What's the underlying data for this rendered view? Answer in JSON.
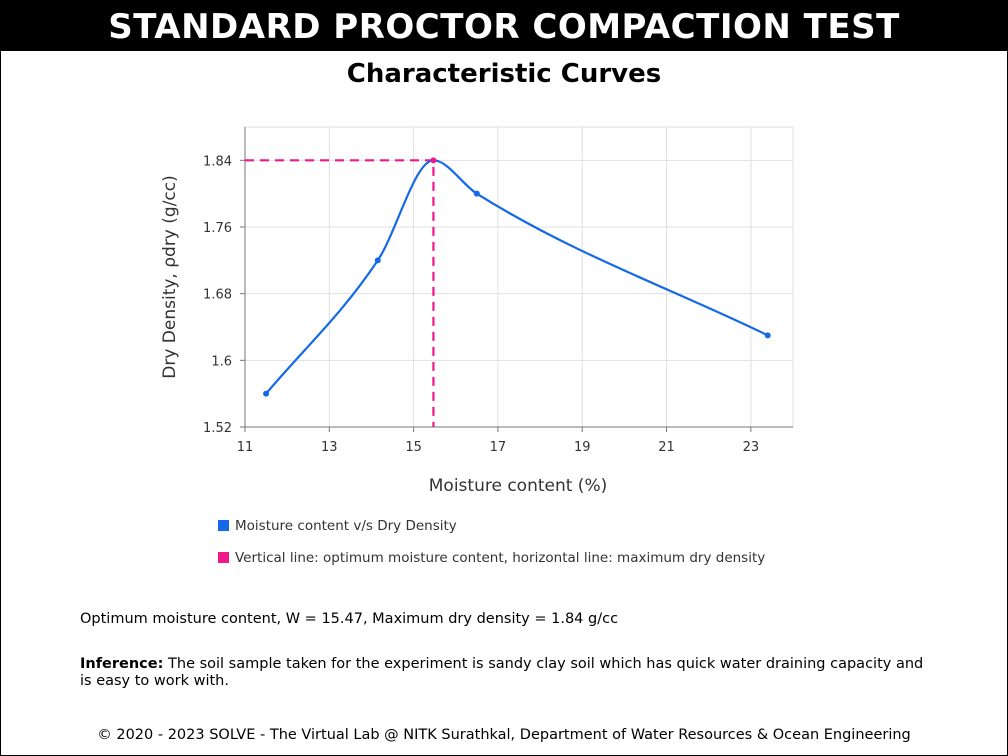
{
  "banner": "STANDARD PROCTOR COMPACTION TEST",
  "subtitle": "Characteristic Curves",
  "chart_data": {
    "type": "line",
    "title": "Characteristic Curves",
    "xlabel": "Moisture content (%)",
    "ylabel": "Dry Density, ρdry (g/cc)",
    "xlim": [
      11,
      24
    ],
    "ylim": [
      1.52,
      1.88
    ],
    "xticks": [
      11,
      13,
      15,
      17,
      19,
      21,
      23
    ],
    "yticks": [
      1.52,
      1.6,
      1.68,
      1.76,
      1.84
    ],
    "grid": true,
    "legend_position": "bottom-left",
    "series": [
      {
        "name": "Moisture content v/s Dry Density",
        "color": "#1469e8",
        "points": [
          {
            "x": 11.5,
            "y": 1.56
          },
          {
            "x": 14.15,
            "y": 1.72
          },
          {
            "x": 15.47,
            "y": 1.84
          },
          {
            "x": 16.5,
            "y": 1.8
          },
          {
            "x": 23.4,
            "y": 1.63
          }
        ]
      },
      {
        "name": "Vertical line: optimum moisture content, horizontal line: maximum dry density",
        "color": "#f0198c",
        "style": "dashed",
        "points": [
          {
            "x": 11,
            "y": 1.84
          },
          {
            "x": 15.47,
            "y": 1.84
          },
          {
            "x": 15.47,
            "y": 1.52
          }
        ]
      }
    ]
  },
  "result_text": "Optimum moisture content, W = 15.47, Maximum dry density = 1.84 g/cc",
  "inference": {
    "label": "Inference:",
    "text": " The soil sample taken for the experiment is sandy clay soil which has quick water draining capacity and is easy to work with."
  },
  "footer": "© 2020 - 2023 SOLVE - The Virtual Lab @ NITK Surathkal, Department of Water Resources & Ocean Engineering"
}
